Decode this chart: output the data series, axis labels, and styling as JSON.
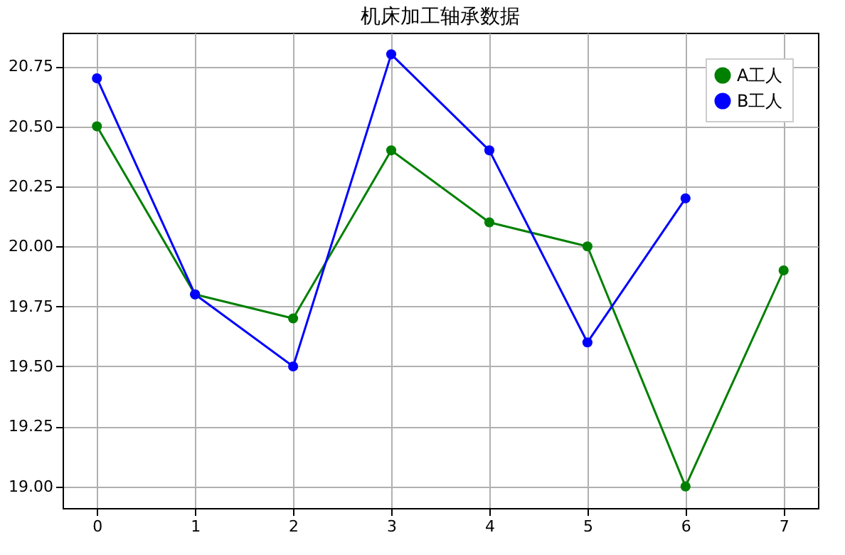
{
  "chart_data": {
    "type": "line",
    "title": "机床加工轴承数据",
    "xlim": [
      -0.35,
      7.35
    ],
    "xticks": [
      0,
      1,
      2,
      3,
      4,
      5,
      6,
      7
    ],
    "ylim": [
      18.91,
      20.89
    ],
    "yticks": [
      {
        "value": 19.0,
        "label": "19.00"
      },
      {
        "value": 19.25,
        "label": "19.25"
      },
      {
        "value": 19.5,
        "label": "19.50"
      },
      {
        "value": 19.75,
        "label": "19.75"
      },
      {
        "value": 20.0,
        "label": "20.00"
      },
      {
        "value": 20.25,
        "label": "20.25"
      },
      {
        "value": 20.5,
        "label": "20.50"
      },
      {
        "value": 20.75,
        "label": "20.75"
      }
    ],
    "grid": true,
    "legend": "top right",
    "marker": "circle",
    "line_style": "solid",
    "series": [
      {
        "name": "A工人",
        "color": "#008000",
        "x": [
          0,
          1,
          2,
          3,
          4,
          5,
          6,
          7
        ],
        "values": [
          20.5,
          19.8,
          19.7,
          20.4,
          20.1,
          20.0,
          19.0,
          19.9
        ]
      },
      {
        "name": "B工人",
        "color": "#0000ff",
        "x": [
          0,
          1,
          2,
          3,
          4,
          5,
          6
        ],
        "values": [
          20.7,
          19.8,
          19.5,
          20.8,
          20.4,
          19.6,
          20.2
        ]
      }
    ]
  }
}
